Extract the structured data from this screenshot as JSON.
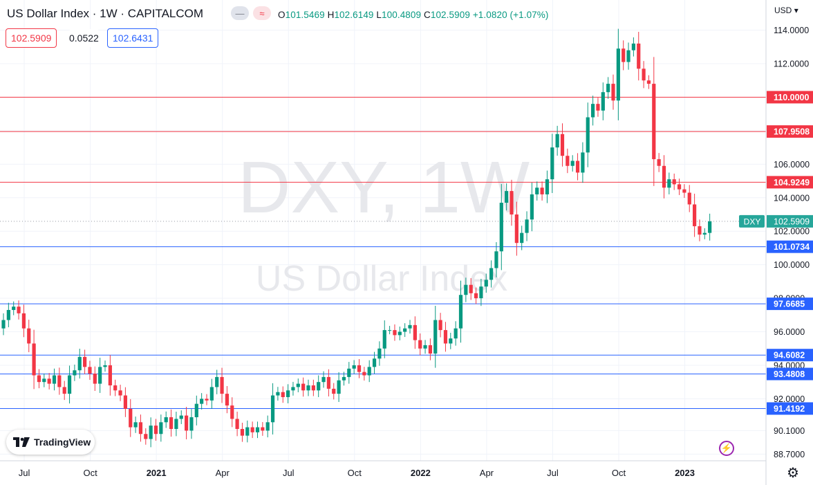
{
  "header": {
    "title": "US Dollar Index · 1W · CAPITALCOM",
    "icon_1": "minus-icon",
    "icon_2": "wave-icon",
    "ohlc": {
      "o_label": "O",
      "o": "101.5469",
      "h_label": "H",
      "h": "102.6149",
      "l_label": "L",
      "l": "100.4809",
      "c_label": "C",
      "c": "102.5909",
      "change": "+1.0820 (+1.07%)"
    },
    "bid": "102.5909",
    "spread": "0.0522",
    "ask": "102.6431",
    "currency": "USD"
  },
  "watermark": {
    "symbol": "DXY, 1W",
    "name": "US Dollar Index"
  },
  "branding": {
    "logo_text": "TradingView"
  },
  "colors": {
    "up": "#089981",
    "down": "#f23645",
    "resistance": "#f23645",
    "support": "#2962ff",
    "last_price": "#26a69a"
  },
  "chart_data": {
    "type": "candlestick",
    "title": "US Dollar Index · 1W · CAPITALCOM",
    "symbol": "DXY",
    "interval": "1W",
    "ylim": [
      88.3,
      115.8
    ],
    "y_ticks": [
      "88.7000",
      "90.1000",
      "92.0000",
      "94.0000",
      "96.0000",
      "98.0000",
      "100.0000",
      "102.0000",
      "104.0000",
      "106.0000",
      "108.0000",
      "110.0000",
      "112.0000",
      "114.0000"
    ],
    "x_ticks": [
      "Jul",
      "Oct",
      "2021",
      "Apr",
      "Jul",
      "Oct",
      "2022",
      "Apr",
      "Jul",
      "Oct",
      "2023"
    ],
    "x_tick_weeks": [
      3,
      16,
      29,
      42,
      55,
      68,
      81,
      94,
      107,
      120,
      133
    ],
    "horizontal_levels": [
      {
        "value": 110.0,
        "label": "110.0000",
        "kind": "resistance"
      },
      {
        "value": 107.9508,
        "label": "107.9508",
        "kind": "resistance"
      },
      {
        "value": 104.9249,
        "label": "104.9249",
        "kind": "resistance"
      },
      {
        "value": 101.0734,
        "label": "101.0734",
        "kind": "support"
      },
      {
        "value": 97.6685,
        "label": "97.6685",
        "kind": "support"
      },
      {
        "value": 94.6082,
        "label": "94.6082",
        "kind": "support"
      },
      {
        "value": 93.4808,
        "label": "93.4808",
        "kind": "support"
      },
      {
        "value": 91.4192,
        "label": "91.4192",
        "kind": "support"
      }
    ],
    "last_price": {
      "symbol": "DXY",
      "value": 102.5909,
      "label": "102.5909"
    },
    "closes": [
      96.7,
      97.3,
      97.5,
      97.1,
      96.2,
      95.3,
      93.4,
      93.0,
      93.2,
      92.9,
      93.4,
      92.7,
      92.3,
      93.4,
      93.7,
      94.5,
      93.9,
      93.5,
      92.9,
      93.9,
      94.0,
      92.8,
      92.5,
      92.2,
      91.4,
      90.3,
      90.6,
      89.9,
      89.6,
      90.4,
      89.9,
      90.6,
      90.9,
      90.2,
      90.8,
      91.0,
      90.1,
      90.9,
      91.7,
      92.0,
      91.9,
      92.7,
      93.3,
      92.3,
      91.6,
      90.8,
      90.2,
      89.8,
      90.3,
      90.0,
      90.3,
      90.1,
      90.6,
      92.2,
      92.4,
      92.1,
      92.5,
      92.7,
      92.9,
      92.5,
      92.8,
      92.5,
      93.0,
      93.3,
      92.6,
      92.3,
      93.1,
      93.3,
      93.8,
      94.0,
      93.6,
      93.4,
      93.9,
      94.4,
      95.0,
      96.1,
      96.1,
      95.8,
      96.0,
      96.2,
      96.4,
      95.5,
      95.0,
      95.2,
      94.7,
      96.7,
      96.1,
      95.3,
      95.6,
      96.2,
      98.2,
      98.8,
      98.3,
      98.0,
      98.7,
      99.1,
      99.8,
      100.8,
      103.7,
      104.4,
      103.0,
      101.3,
      101.9,
      102.7,
      104.2,
      104.6,
      104.2,
      105.1,
      107.0,
      107.8,
      106.5,
      105.9,
      106.2,
      105.5,
      106.7,
      108.8,
      109.6,
      109.2,
      110.3,
      110.8,
      109.8,
      112.9,
      112.1,
      112.8,
      113.2,
      111.7,
      111.0,
      110.8,
      106.3,
      105.9,
      104.6,
      105.1,
      104.8,
      104.5,
      104.3,
      103.6,
      102.3,
      101.8,
      101.9,
      102.5909
    ]
  }
}
